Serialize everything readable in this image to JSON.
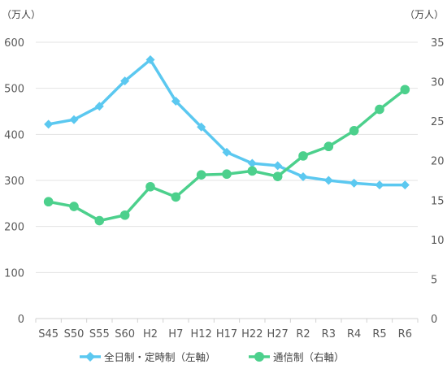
{
  "chart_data": {
    "type": "line",
    "categories": [
      "S45",
      "S50",
      "S55",
      "S60",
      "H2",
      "H7",
      "H12",
      "H17",
      "H22",
      "H27",
      "R2",
      "R3",
      "R4",
      "R5",
      "R6"
    ],
    "left_axis": {
      "unit_label": "（万人）",
      "ylim": [
        0,
        600
      ],
      "ticks": [
        0,
        100,
        200,
        300,
        400,
        500,
        600
      ]
    },
    "right_axis": {
      "unit_label": "（万人）",
      "ylim": [
        0,
        35
      ],
      "ticks": [
        0,
        5,
        10,
        15,
        20,
        25,
        30,
        35
      ]
    },
    "grid": true,
    "legend_position": "bottom",
    "series": [
      {
        "name": "全日制・定時制（左軸）",
        "axis": "left",
        "color": "#5bc8f0",
        "marker": "diamond",
        "values": [
          422,
          432,
          461,
          516,
          562,
          472,
          416,
          361,
          337,
          332,
          308,
          300,
          294,
          290,
          290
        ]
      },
      {
        "name": "通信制（右軸）",
        "axis": "right",
        "color": "#4cd08c",
        "marker": "circle",
        "values": [
          14.8,
          14.2,
          12.4,
          13.1,
          16.7,
          15.4,
          18.2,
          18.3,
          18.7,
          18.0,
          20.6,
          21.8,
          23.8,
          26.5,
          29.0
        ]
      }
    ]
  }
}
